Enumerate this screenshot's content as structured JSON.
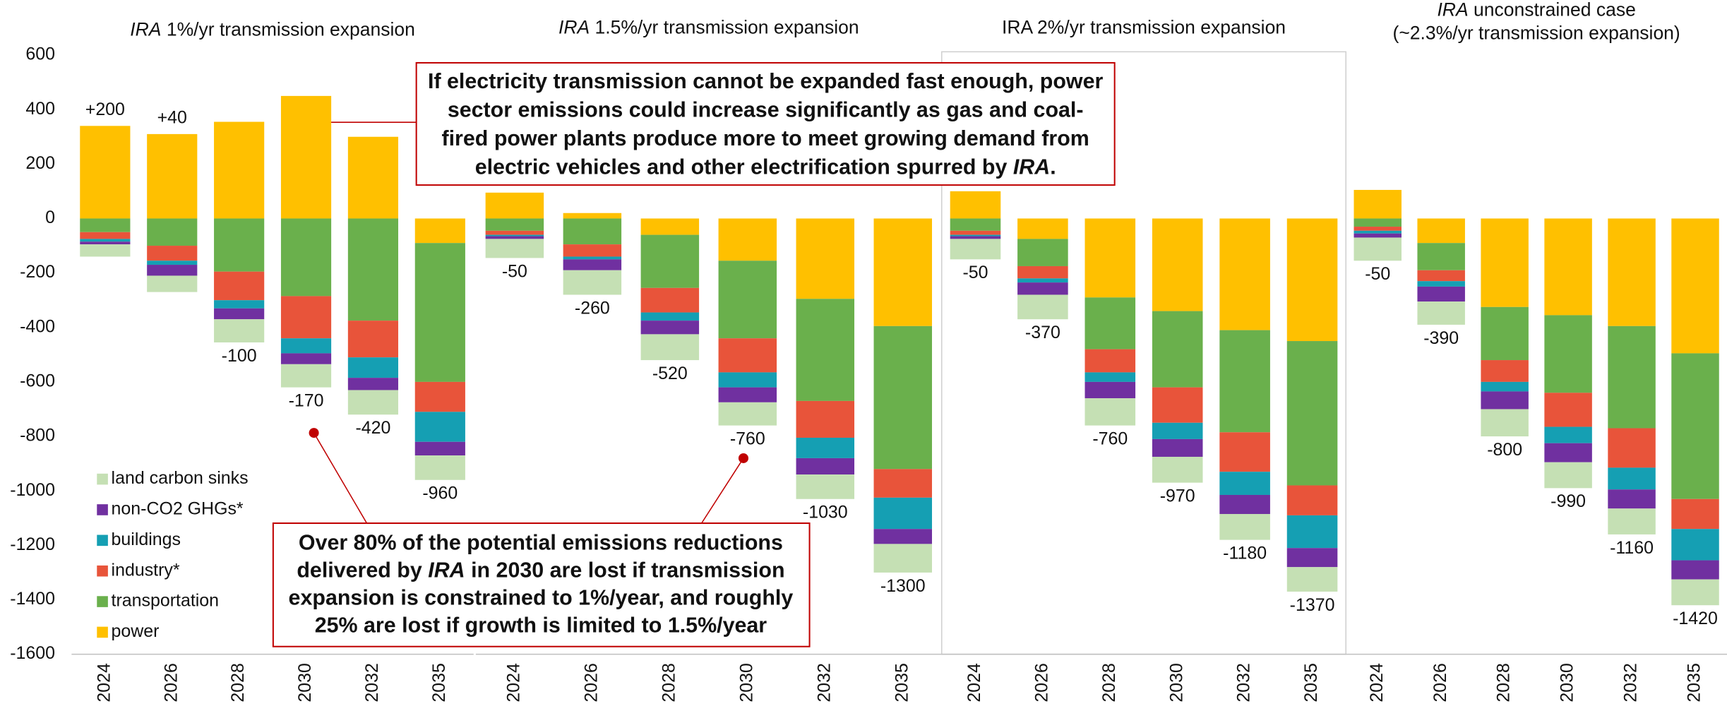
{
  "chart_data": [
    {
      "type": "bar",
      "stacked": true,
      "title_lines": [
        [
          {
            "text": "IRA",
            "italic": true
          },
          {
            "text": " 1%/yr transmission expansion"
          }
        ]
      ],
      "categories": [
        "2024",
        "2026",
        "2028",
        "2030",
        "2032",
        "2035"
      ],
      "series": [
        {
          "name": "power",
          "color": "#ffc000",
          "values": [
            340,
            310,
            355,
            450,
            300,
            -90
          ]
        },
        {
          "name": "transportation",
          "color": "#6ab04c",
          "values": [
            -50,
            -100,
            -195,
            -285,
            -375,
            -510
          ]
        },
        {
          "name": "industry*",
          "color": "#e8543a",
          "values": [
            -25,
            -55,
            -105,
            -155,
            -135,
            -110
          ]
        },
        {
          "name": "buildings",
          "color": "#159fb3",
          "values": [
            -10,
            -15,
            -30,
            -55,
            -75,
            -110
          ]
        },
        {
          "name": "non-CO2 GHGs*",
          "color": "#7030a0",
          "values": [
            -10,
            -40,
            -40,
            -40,
            -45,
            -50
          ]
        },
        {
          "name": "land carbon sinks",
          "color": "#c5e0b4",
          "values": [
            -45,
            -60,
            -85,
            -85,
            -90,
            -90
          ]
        }
      ],
      "net": [
        200,
        40,
        -100,
        -170,
        -420,
        -960
      ],
      "net_labels": [
        "+200",
        "+40",
        "-100",
        "-170",
        "-420",
        "-960"
      ],
      "ylim": [
        -1600,
        600
      ],
      "yticks": [
        600,
        400,
        200,
        0,
        -200,
        -400,
        -600,
        -800,
        -1000,
        -1200,
        -1400,
        -1600
      ],
      "legend": "lower left"
    },
    {
      "type": "bar",
      "stacked": true,
      "title_lines": [
        [
          {
            "text": "IRA",
            "italic": true
          },
          {
            "text": " 1.5%/yr transmission expansion"
          }
        ]
      ],
      "categories": [
        "2024",
        "2026",
        "2028",
        "2030",
        "2032",
        "2035"
      ],
      "series": [
        {
          "values": [
            95,
            20,
            -60,
            -155,
            -295,
            -395
          ]
        },
        {
          "values": [
            -45,
            -95,
            -195,
            -285,
            -375,
            -525
          ]
        },
        {
          "values": [
            -15,
            -45,
            -90,
            -125,
            -135,
            -105
          ]
        },
        {
          "values": [
            -5,
            -10,
            -30,
            -55,
            -75,
            -115
          ]
        },
        {
          "values": [
            -10,
            -40,
            -50,
            -55,
            -60,
            -55
          ]
        },
        {
          "values": [
            -70,
            -90,
            -95,
            -85,
            -90,
            -105
          ]
        }
      ],
      "net": [
        -50,
        -260,
        -520,
        -760,
        -1030,
        -1300
      ],
      "ylim": [
        -1600,
        600
      ]
    },
    {
      "type": "bar",
      "stacked": true,
      "title_lines": [
        [
          {
            "text": "IRA 2%/yr transmission expansion"
          }
        ]
      ],
      "categories": [
        "2024",
        "2026",
        "2028",
        "2030",
        "2032",
        "2035"
      ],
      "series": [
        {
          "values": [
            100,
            -75,
            -290,
            -340,
            -410,
            -450
          ]
        },
        {
          "values": [
            -45,
            -100,
            -190,
            -280,
            -375,
            -530
          ]
        },
        {
          "values": [
            -15,
            -45,
            -85,
            -130,
            -145,
            -110
          ]
        },
        {
          "values": [
            -5,
            -15,
            -35,
            -60,
            -85,
            -120
          ]
        },
        {
          "values": [
            -10,
            -45,
            -60,
            -65,
            -70,
            -70
          ]
        },
        {
          "values": [
            -75,
            -90,
            -100,
            -95,
            -95,
            -90
          ]
        }
      ],
      "net": [
        -50,
        -370,
        -760,
        -970,
        -1180,
        -1370
      ],
      "ylim": [
        -1600,
        600
      ]
    },
    {
      "type": "bar",
      "stacked": true,
      "title_lines": [
        [
          {
            "text": "IRA",
            "italic": true
          },
          {
            "text": " unconstrained case"
          }
        ],
        [
          {
            "text": "(~2.3%/yr transmission expansion)"
          }
        ]
      ],
      "categories": [
        "2024",
        "2026",
        "2028",
        "2030",
        "2032",
        "2035"
      ],
      "series": [
        {
          "values": [
            105,
            -90,
            -325,
            -355,
            -395,
            -495
          ]
        },
        {
          "values": [
            -30,
            -100,
            -195,
            -285,
            -375,
            -535
          ]
        },
        {
          "values": [
            -15,
            -40,
            -80,
            -125,
            -145,
            -110
          ]
        },
        {
          "values": [
            -10,
            -20,
            -35,
            -60,
            -80,
            -115
          ]
        },
        {
          "values": [
            -15,
            -55,
            -65,
            -70,
            -70,
            -70
          ]
        },
        {
          "values": [
            -85,
            -85,
            -100,
            -95,
            -95,
            -95
          ]
        }
      ],
      "net": [
        -50,
        -390,
        -800,
        -990,
        -1160,
        -1420
      ],
      "ylim": [
        -1600,
        600
      ]
    }
  ],
  "annotations": [
    {
      "lines": [
        [
          {
            "text": "If electricity transmission cannot be expanded fast enough, power"
          }
        ],
        [
          {
            "text": "sector emissions could increase significantly as gas and coal-"
          }
        ],
        [
          {
            "text": "fired power plants produce more to meet growing demand from"
          }
        ],
        [
          {
            "text": "electric vehicles and other electrification spurred by "
          },
          {
            "text": "IRA",
            "italic": true
          },
          {
            "text": "."
          }
        ]
      ]
    },
    {
      "lines": [
        [
          {
            "text": "Over 80% of the potential emissions reductions"
          }
        ],
        [
          {
            "text": "delivered by "
          },
          {
            "text": "IRA",
            "italic": true
          },
          {
            "text": " in 2030 are lost if transmission"
          }
        ],
        [
          {
            "text": "expansion is constrained to 1%/year, and roughly"
          }
        ],
        [
          {
            "text": "25% are lost if growth is limited to 1.5%/year"
          }
        ]
      ]
    }
  ]
}
